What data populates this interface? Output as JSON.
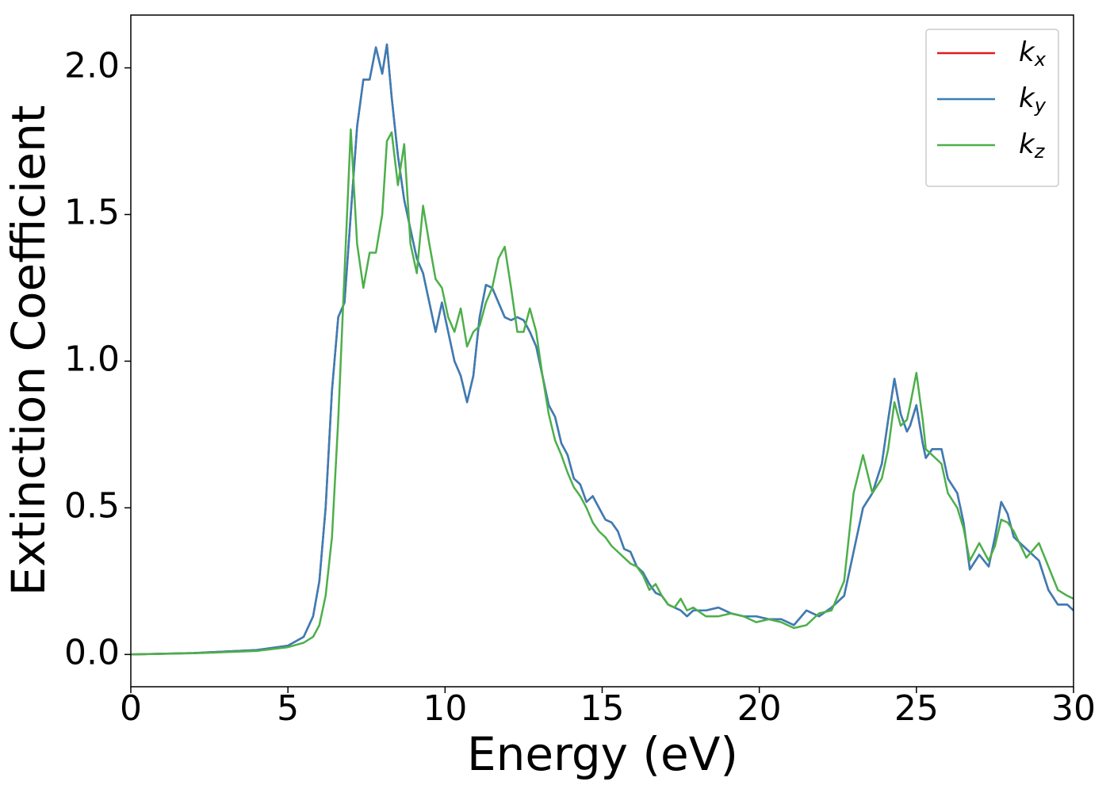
{
  "chart_data": {
    "type": "line",
    "x_label": "Energy (eV)",
    "y_label": "Extinction Coefficient",
    "x": [
      0,
      2,
      4,
      5,
      5.5,
      5.8,
      6.0,
      6.2,
      6.4,
      6.6,
      6.8,
      7.0,
      7.2,
      7.4,
      7.6,
      7.8,
      8.0,
      8.15,
      8.3,
      8.5,
      8.7,
      8.9,
      9.1,
      9.3,
      9.5,
      9.7,
      9.9,
      10.1,
      10.3,
      10.5,
      10.7,
      10.9,
      11.1,
      11.3,
      11.5,
      11.7,
      11.9,
      12.1,
      12.3,
      12.5,
      12.7,
      12.9,
      13.1,
      13.3,
      13.5,
      13.7,
      13.9,
      14.1,
      14.3,
      14.5,
      14.7,
      14.9,
      15.1,
      15.3,
      15.5,
      15.7,
      15.9,
      16.1,
      16.3,
      16.5,
      16.7,
      16.9,
      17.1,
      17.3,
      17.5,
      17.7,
      17.9,
      18.3,
      18.7,
      19.1,
      19.5,
      19.9,
      20.3,
      20.7,
      21.1,
      21.5,
      21.9,
      22.3,
      22.7,
      23.0,
      23.3,
      23.6,
      23.9,
      24.1,
      24.3,
      24.5,
      24.7,
      24.8,
      25.0,
      25.2,
      25.3,
      25.5,
      25.8,
      26.0,
      26.3,
      26.5,
      26.7,
      27.0,
      27.3,
      27.5,
      27.7,
      27.9,
      28.1,
      28.5,
      28.9,
      29.2,
      29.5,
      29.8,
      30
    ],
    "series": [
      {
        "name": "kx",
        "color": "#e41a1c",
        "values": [
          0,
          0.005,
          0.015,
          0.03,
          0.06,
          0.13,
          0.25,
          0.5,
          0.9,
          1.15,
          1.2,
          1.5,
          1.8,
          1.96,
          1.96,
          2.07,
          1.98,
          2.08,
          1.9,
          1.7,
          1.55,
          1.45,
          1.35,
          1.3,
          1.2,
          1.1,
          1.2,
          1.1,
          1.0,
          0.95,
          0.86,
          0.95,
          1.15,
          1.26,
          1.25,
          1.2,
          1.15,
          1.14,
          1.15,
          1.14,
          1.1,
          1.05,
          0.95,
          0.85,
          0.81,
          0.72,
          0.68,
          0.6,
          0.58,
          0.52,
          0.54,
          0.5,
          0.46,
          0.45,
          0.42,
          0.36,
          0.35,
          0.3,
          0.28,
          0.24,
          0.21,
          0.2,
          0.17,
          0.16,
          0.15,
          0.13,
          0.15,
          0.15,
          0.16,
          0.14,
          0.13,
          0.13,
          0.12,
          0.12,
          0.1,
          0.15,
          0.13,
          0.16,
          0.2,
          0.35,
          0.5,
          0.55,
          0.65,
          0.8,
          0.94,
          0.82,
          0.76,
          0.78,
          0.85,
          0.72,
          0.67,
          0.7,
          0.7,
          0.6,
          0.55,
          0.45,
          0.29,
          0.34,
          0.3,
          0.4,
          0.52,
          0.48,
          0.4,
          0.36,
          0.32,
          0.22,
          0.17,
          0.17,
          0.15
        ]
      },
      {
        "name": "ky",
        "color": "#377eb8",
        "values": [
          0,
          0.005,
          0.015,
          0.03,
          0.06,
          0.13,
          0.25,
          0.5,
          0.9,
          1.15,
          1.2,
          1.5,
          1.8,
          1.96,
          1.96,
          2.07,
          1.98,
          2.08,
          1.9,
          1.7,
          1.55,
          1.45,
          1.35,
          1.3,
          1.2,
          1.1,
          1.2,
          1.1,
          1.0,
          0.95,
          0.86,
          0.95,
          1.15,
          1.26,
          1.25,
          1.2,
          1.15,
          1.14,
          1.15,
          1.14,
          1.1,
          1.05,
          0.95,
          0.85,
          0.81,
          0.72,
          0.68,
          0.6,
          0.58,
          0.52,
          0.54,
          0.5,
          0.46,
          0.45,
          0.42,
          0.36,
          0.35,
          0.3,
          0.28,
          0.24,
          0.21,
          0.2,
          0.17,
          0.16,
          0.15,
          0.13,
          0.15,
          0.15,
          0.16,
          0.14,
          0.13,
          0.13,
          0.12,
          0.12,
          0.1,
          0.15,
          0.13,
          0.16,
          0.2,
          0.35,
          0.5,
          0.55,
          0.65,
          0.8,
          0.94,
          0.82,
          0.76,
          0.78,
          0.85,
          0.72,
          0.67,
          0.7,
          0.7,
          0.6,
          0.55,
          0.45,
          0.29,
          0.34,
          0.3,
          0.4,
          0.52,
          0.48,
          0.4,
          0.36,
          0.32,
          0.22,
          0.17,
          0.17,
          0.15
        ]
      },
      {
        "name": "kz",
        "color": "#4daf4a",
        "values": [
          0,
          0.004,
          0.012,
          0.025,
          0.04,
          0.06,
          0.1,
          0.2,
          0.4,
          0.8,
          1.3,
          1.79,
          1.4,
          1.25,
          1.37,
          1.37,
          1.5,
          1.75,
          1.78,
          1.6,
          1.74,
          1.4,
          1.3,
          1.53,
          1.4,
          1.28,
          1.25,
          1.15,
          1.1,
          1.18,
          1.05,
          1.1,
          1.12,
          1.2,
          1.25,
          1.35,
          1.39,
          1.25,
          1.1,
          1.1,
          1.18,
          1.1,
          0.95,
          0.82,
          0.73,
          0.68,
          0.62,
          0.57,
          0.54,
          0.5,
          0.45,
          0.42,
          0.4,
          0.37,
          0.35,
          0.33,
          0.31,
          0.3,
          0.27,
          0.22,
          0.24,
          0.2,
          0.17,
          0.16,
          0.19,
          0.15,
          0.16,
          0.13,
          0.13,
          0.14,
          0.13,
          0.11,
          0.12,
          0.11,
          0.09,
          0.1,
          0.14,
          0.15,
          0.25,
          0.55,
          0.68,
          0.55,
          0.6,
          0.7,
          0.86,
          0.78,
          0.8,
          0.85,
          0.96,
          0.8,
          0.7,
          0.68,
          0.65,
          0.55,
          0.5,
          0.43,
          0.32,
          0.38,
          0.32,
          0.37,
          0.46,
          0.45,
          0.42,
          0.33,
          0.38,
          0.3,
          0.22,
          0.2,
          0.19
        ]
      }
    ],
    "xlim": [
      0,
      30
    ],
    "xticks": [
      0,
      5,
      10,
      15,
      20,
      25,
      30
    ],
    "ylim": [
      -0.11,
      2.18
    ],
    "yticks": [
      {
        "value": 0,
        "label": "0.0"
      },
      0.5,
      {
        "value": 1,
        "label": "1.0"
      },
      1.5,
      {
        "value": 2,
        "label": "2.0"
      }
    ],
    "legend": "upper right",
    "grid": false
  }
}
